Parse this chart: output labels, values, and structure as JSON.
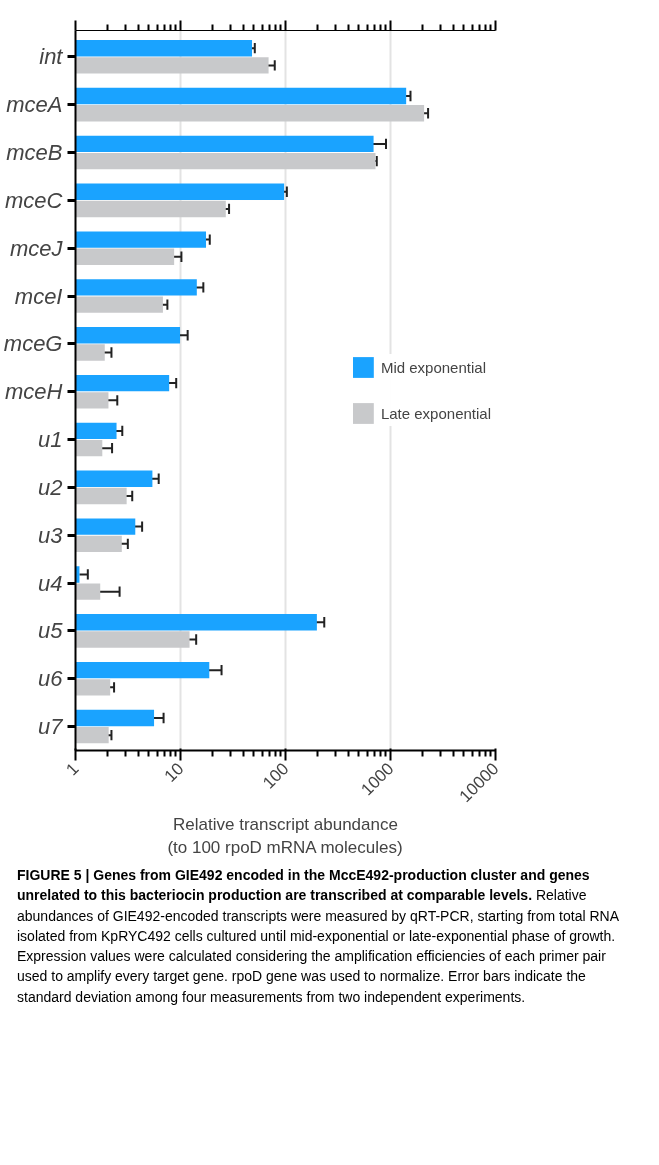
{
  "chart_data": {
    "type": "bar",
    "orientation": "horizontal",
    "log": "x",
    "title": "FIGURE 5 | Genes from GIE492 encoded in the MccE492-production cluster and genes unrelated to this bacteriocin production are transcribed at comparable levels.",
    "annotations": [
      "Relative abundances of GIE492-encoded transcripts were measured by qRT-PCR, starting from total RNA isolated from KpRYC492 cells cultured until mid-exponential or late-exponential phase of growth. Expression values were calculated considering the amplification efficiencies of each primer pair used to amplify every target gene. rpoD gene was used to normalize. Error bars indicate the standard deviation among four measurements from two independent experiments."
    ],
    "xlabel": "Relative transcript abundance\n(to 100 rpoD mRNA molecules)",
    "categories": [
      "int",
      "mceA",
      "mceB",
      "mceC",
      "mceJ",
      "mceI",
      "mceG",
      "mceH",
      "u1",
      "u2",
      "u3",
      "u4",
      "u5",
      "u6",
      "u7"
    ],
    "series": [
      {
        "name": "Mid exponential",
        "color": "#1aa3ff",
        "values": [
          48,
          1410,
          690,
          97,
          17.5,
          14.3,
          9.9,
          7.8,
          2.46,
          5.4,
          3.71,
          1.09,
          199,
          18.8,
          5.6
        ],
        "errors": [
          3,
          140,
          216,
          6,
          1.5,
          2.2,
          1.8,
          1.3,
          0.33,
          0.8,
          0.6,
          [
            1.09,
            1.31
          ],
          35,
          5.8,
          1.3
        ]
      },
      {
        "name": "Late exponential",
        "color": "#c8c9cb",
        "values": [
          69,
          2090,
          720,
          27,
          8.7,
          6.8,
          1.9,
          2.06,
          1.8,
          3.07,
          2.76,
          1.72,
          12.2,
          2.14,
          2.07
        ],
        "errors": [
          10,
          190,
          20,
          2,
          1.5,
          0.7,
          0.3,
          0.44,
          0.43,
          0.4,
          0.39,
          [
            1.02,
            2.63
          ],
          1.9,
          0.19,
          0.13
        ]
      }
    ],
    "xlim": [
      1,
      10000
    ],
    "xticks": [
      1,
      10,
      100,
      1000,
      10000
    ],
    "grid": "x",
    "legend": "right"
  }
}
